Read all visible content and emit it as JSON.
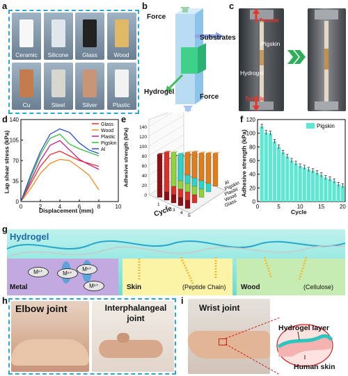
{
  "panel_labels": {
    "a": "a",
    "b": "b",
    "c": "c",
    "d": "d",
    "e": "e",
    "f": "f",
    "g": "g",
    "h": "h",
    "i": "i"
  },
  "panel_a": {
    "samples": [
      "Ceramic",
      "Silicone",
      "Glass",
      "Wood",
      "Cu",
      "Steel",
      "Silver",
      "Plastic"
    ]
  },
  "panel_b": {
    "force_top": "Force",
    "substrates": "Substrates",
    "hydrogel": "Hydrogel",
    "force_bottom": "Force"
  },
  "panel_c": {
    "tensile_top": "Tensile",
    "pigskin": "Pigskin",
    "hydrogel": "Hydrogel",
    "tensile_bottom": "Tensile"
  },
  "chart_data": [
    {
      "type": "line",
      "xlabel": "Displacement (mm)",
      "ylabel": "Lap shear stress (kPa)",
      "xlim": [
        0,
        10
      ],
      "ylim": [
        0,
        140
      ],
      "xticks": [
        0,
        2,
        4,
        6,
        8,
        10
      ],
      "yticks": [
        0,
        35,
        70,
        105,
        140
      ],
      "legend_position": "top-right",
      "series": [
        {
          "name": "Glass",
          "color": "#e8342b",
          "x": [
            0,
            1,
            2,
            3,
            4,
            5,
            6,
            7,
            8
          ],
          "y": [
            0,
            30,
            60,
            80,
            86,
            78,
            70,
            65,
            60
          ]
        },
        {
          "name": "Wood",
          "color": "#f08a1c",
          "x": [
            0,
            1,
            2,
            3,
            4,
            5,
            6,
            7,
            8
          ],
          "y": [
            0,
            22,
            48,
            65,
            72,
            70,
            58,
            45,
            20
          ]
        },
        {
          "name": "Plastic",
          "color": "#c81c8c",
          "x": [
            0,
            1,
            2,
            3,
            4,
            5,
            6,
            7,
            8
          ],
          "y": [
            0,
            35,
            70,
            96,
            104,
            88,
            72,
            63,
            55
          ]
        },
        {
          "name": "Pigskin",
          "color": "#2bbf3a",
          "x": [
            0,
            1,
            2,
            3,
            4,
            5,
            6,
            7,
            8
          ],
          "y": [
            0,
            40,
            80,
            108,
            115,
            98,
            90,
            84,
            78
          ]
        },
        {
          "name": "Al",
          "color": "#2a4bd6",
          "x": [
            0,
            1,
            2,
            3,
            4,
            5,
            6,
            7,
            8
          ],
          "y": [
            0,
            45,
            85,
            115,
            124,
            118,
            100,
            88,
            82
          ]
        }
      ]
    },
    {
      "type": "bar",
      "title": "",
      "zlabel": "Adhesive strength (kPa)",
      "xlabel": "Cycle",
      "zticks": [
        0,
        20,
        40,
        60,
        80,
        100,
        120,
        140
      ],
      "materials": [
        "Al",
        "Pigskin",
        "Plastic",
        "Wood",
        "Glass"
      ],
      "cycles": [
        "1",
        "2",
        "3",
        "4",
        "5"
      ],
      "colors": [
        "#8b0f14",
        "#d8312a",
        "#8fd43a",
        "#2bd6c9",
        "#e07f1a"
      ]
    },
    {
      "type": "bar",
      "legend": "Pigskin",
      "legend_position": "top-right",
      "color": "#5de8d4",
      "xlabel": "Cycle",
      "ylabel": "Adhesive strength (kPa)",
      "xlim": [
        0,
        20
      ],
      "ylim": [
        0,
        120
      ],
      "xticks": [
        0,
        5,
        10,
        15,
        20
      ],
      "yticks": [
        0,
        20,
        40,
        60,
        80,
        100,
        120
      ],
      "categories": [
        1,
        2,
        3,
        4,
        5,
        6,
        7,
        8,
        9,
        10,
        11,
        12,
        13,
        14,
        15,
        16,
        17,
        18,
        19,
        20
      ],
      "values": [
        110,
        101,
        100,
        88,
        80,
        72,
        66,
        60,
        56,
        52,
        50,
        47,
        45,
        42,
        39,
        35,
        33,
        30,
        25,
        23
      ]
    }
  ],
  "panel_g": {
    "hydrogel": "Hydrogel",
    "metal": "Metal",
    "skin": "Skin",
    "peptide": "(Peptide Chain)",
    "wood": "Wood",
    "cellulose": "(Cellulose)",
    "ion": "Mⁿ⁺"
  },
  "panel_h": {
    "elbow": "Elbow joint",
    "interphalangeal": "Interphalangeal joint"
  },
  "panel_i": {
    "wrist": "Wrist joint",
    "hydrogel_layer": "Hydrogel layer",
    "human_skin": "Human skin"
  }
}
